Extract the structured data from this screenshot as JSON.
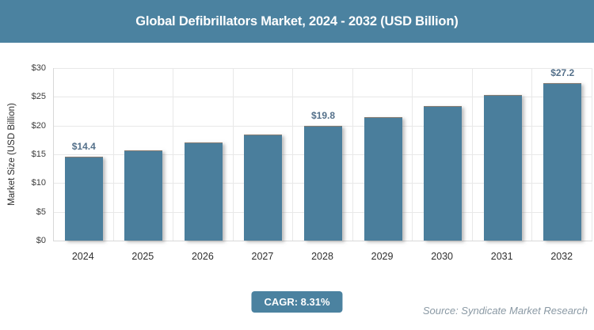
{
  "title": "Global Defibrillators Market, 2024 - 2032 (USD Billion)",
  "colors": {
    "banner": "#4b82a0",
    "bar": "#4a7e9c",
    "badge": "#4b82a0",
    "data_label": "#54708a",
    "source": "#8a99a4",
    "gridline": "#e8e8e8"
  },
  "chart_data": {
    "type": "bar",
    "title": "Global Defibrillators Market, 2024 - 2032 (USD Billion)",
    "categories": [
      "2024",
      "2025",
      "2026",
      "2027",
      "2028",
      "2029",
      "2030",
      "2031",
      "2032"
    ],
    "values": [
      14.4,
      15.6,
      16.9,
      18.3,
      19.8,
      21.4,
      23.2,
      25.2,
      27.2
    ],
    "point_labels": [
      "$14.4",
      "",
      "",
      "",
      "$19.8",
      "",
      "",
      "",
      "$27.2"
    ],
    "xlabel": "",
    "ylabel": "Market Size (USD Billion)",
    "ylim": [
      0,
      30
    ],
    "ytick_values": [
      0,
      5,
      10,
      15,
      20,
      25,
      30
    ],
    "ytick_labels": [
      "$0",
      "$5",
      "$10",
      "$15",
      "$20",
      "$25",
      "$30"
    ],
    "grid": true,
    "legend": "none",
    "bar_color": "#4a7e9c"
  },
  "footer": {
    "cagr_label": "CAGR: 8.31%",
    "source": "Source: Syndicate Market Research"
  }
}
